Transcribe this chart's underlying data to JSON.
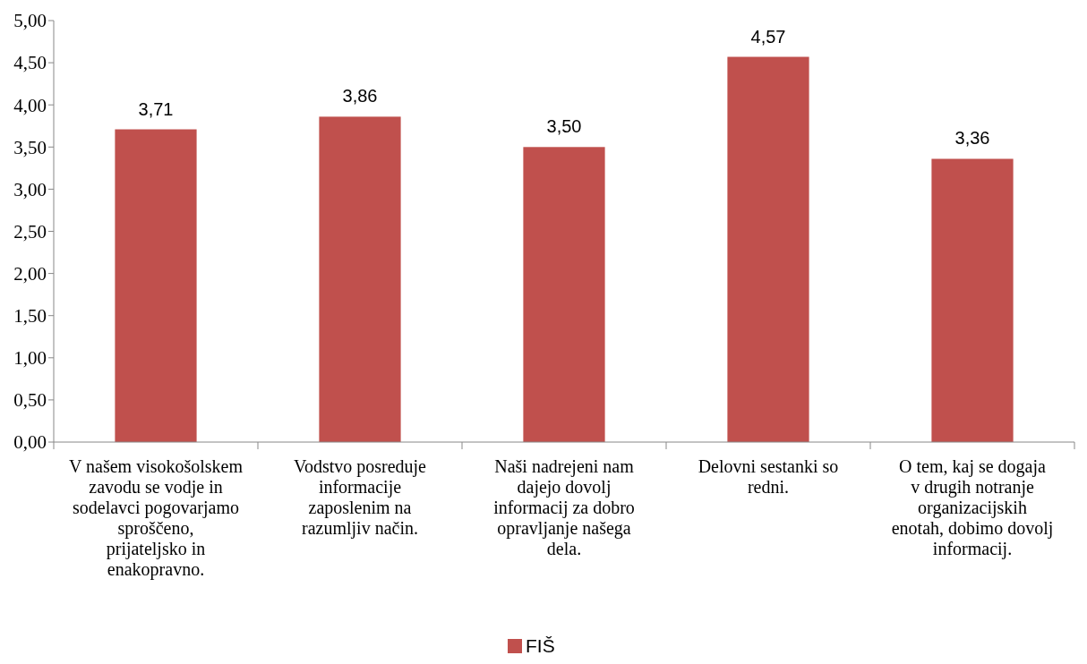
{
  "chart_data": {
    "type": "bar",
    "categories": [
      "V našem visokošolskem zavodu se vodje in sodelavci pogovarjamo sproščeno, prijateljsko in enakopravno.",
      "Vodstvo posreduje informacije zaposlenim na razumljiv način.",
      "Naši nadrejeni nam dajejo dovolj informacij za dobro opravljanje našega dela.",
      "Delovni sestanki so redni.",
      "O tem, kaj se dogaja v drugih notranje organizacijskih enotah, dobimo dovolj informacij."
    ],
    "series": [
      {
        "name": "FIŠ",
        "color": "#c0504d",
        "values": [
          3.71,
          3.86,
          3.5,
          4.57,
          3.36
        ],
        "value_labels": [
          "3,71",
          "3,86",
          "3,50",
          "4,57",
          "3,36"
        ]
      }
    ],
    "ylim": [
      0,
      5
    ],
    "yticks": [
      {
        "value": 0,
        "label": "0,00"
      },
      {
        "value": 0.5,
        "label": "0,50"
      },
      {
        "value": 1,
        "label": "1,00"
      },
      {
        "value": 1.5,
        "label": "1,50"
      },
      {
        "value": 2,
        "label": "2,00"
      },
      {
        "value": 2.5,
        "label": "2,50"
      },
      {
        "value": 3,
        "label": "3,00"
      },
      {
        "value": 3.5,
        "label": "3,50"
      },
      {
        "value": 4,
        "label": "4,00"
      },
      {
        "value": 4.5,
        "label": "4,50"
      },
      {
        "value": 5,
        "label": "5,00"
      }
    ],
    "legend": "bottom"
  }
}
